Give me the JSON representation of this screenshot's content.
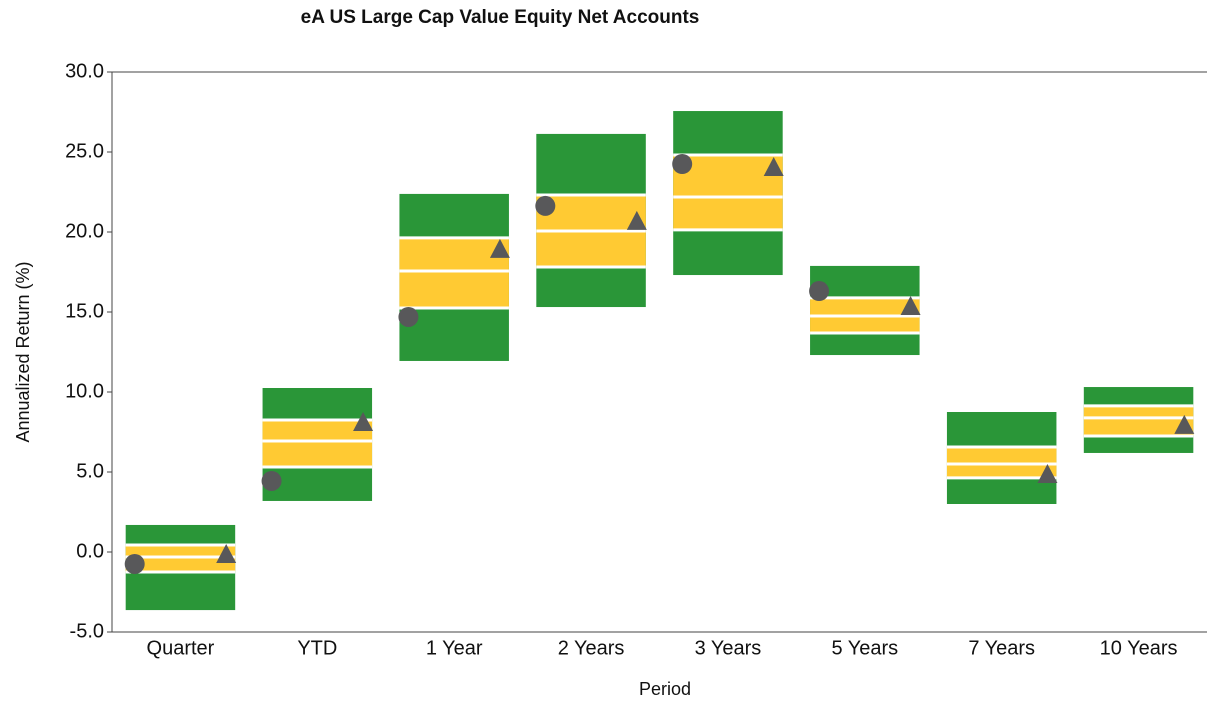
{
  "chart_data": {
    "type": "floating_box",
    "title": "eA US Large Cap Value Equity Net Accounts",
    "x_label": "Period",
    "y_label": "Annualized Return (%)",
    "categories": [
      "Quarter",
      "YTD",
      "1 Year",
      "2 Years",
      "3 Years",
      "5 Years",
      "7 Years",
      "10 Years"
    ],
    "top": [
      1.69,
      10.25,
      22.38,
      26.13,
      27.56,
      17.88,
      8.75,
      10.31
    ],
    "upper_quartile": [
      0.44,
      8.25,
      19.63,
      22.31,
      24.81,
      15.88,
      6.56,
      9.13
    ],
    "median": [
      -0.31,
      6.94,
      17.56,
      20.06,
      22.19,
      14.75,
      5.5,
      8.38
    ],
    "lower_quartile": [
      -1.25,
      5.31,
      15.25,
      17.81,
      20.13,
      13.69,
      4.63,
      7.25
    ],
    "bottom": [
      -3.63,
      3.19,
      11.94,
      15.31,
      17.31,
      12.31,
      3.0,
      6.19
    ],
    "circle": [
      -0.75,
      4.44,
      14.69,
      21.63,
      24.25,
      16.31,
      null,
      null
    ],
    "triangle": [
      -0.19,
      8.06,
      18.88,
      20.63,
      24.0,
      15.31,
      4.81,
      7.88
    ],
    "outer_color": "#2a9638",
    "inner_color": "#ffca33",
    "marker_color": "#58585a",
    "ylim": [
      -5,
      30
    ],
    "yticks": [
      {
        "value": -5,
        "label": "-5.0"
      },
      {
        "value": 0,
        "label": "0.0"
      },
      {
        "value": 5,
        "label": "5.0"
      },
      {
        "value": 10,
        "label": "10.0"
      },
      {
        "value": 15,
        "label": "15.0"
      },
      {
        "value": 20,
        "label": "20.0"
      },
      {
        "value": 25,
        "label": "25.0"
      },
      {
        "value": 30,
        "label": "30.0"
      }
    ]
  }
}
